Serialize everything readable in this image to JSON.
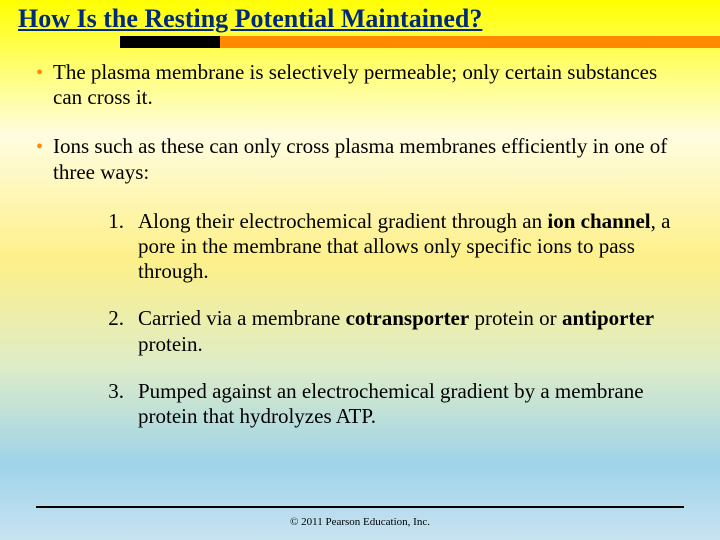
{
  "background": {
    "gradient_stops": [
      "#ffff00",
      "#fffde0",
      "#fdf089",
      "#ddecc8",
      "#9ed3ea",
      "#c8e3f0"
    ],
    "gradient_positions": [
      "0%",
      "25%",
      "48%",
      "68%",
      "86%",
      "100%"
    ]
  },
  "title": {
    "text": "How Is the Resting Potential Maintained?",
    "color": "#002b7a",
    "fontsize": 26
  },
  "accent_bar": {
    "black": "#000000",
    "orange": "#ff8a00"
  },
  "bullets": [
    {
      "text": "The plasma membrane is selectively permeable; only certain substances can cross it."
    },
    {
      "text": "Ions such as these can only cross plasma membranes efficiently in one of three ways:"
    }
  ],
  "numbered": [
    {
      "n": "1.",
      "html": "Along their electrochemical gradient through an <b>ion channel</b>, a pore in the membrane that allows only specific ions to pass through."
    },
    {
      "n": "2.",
      "html": "Carried via a membrane <b>cotransporter</b> protein or <b>antiporter</b> protein."
    },
    {
      "n": "3.",
      "html": "Pumped against an electrochemical gradient by a membrane protein that hydrolyzes ATP."
    }
  ],
  "copyright": "© 2011 Pearson Education, Inc.",
  "text_color": "#000000",
  "bullet_color": "#ff8a00"
}
